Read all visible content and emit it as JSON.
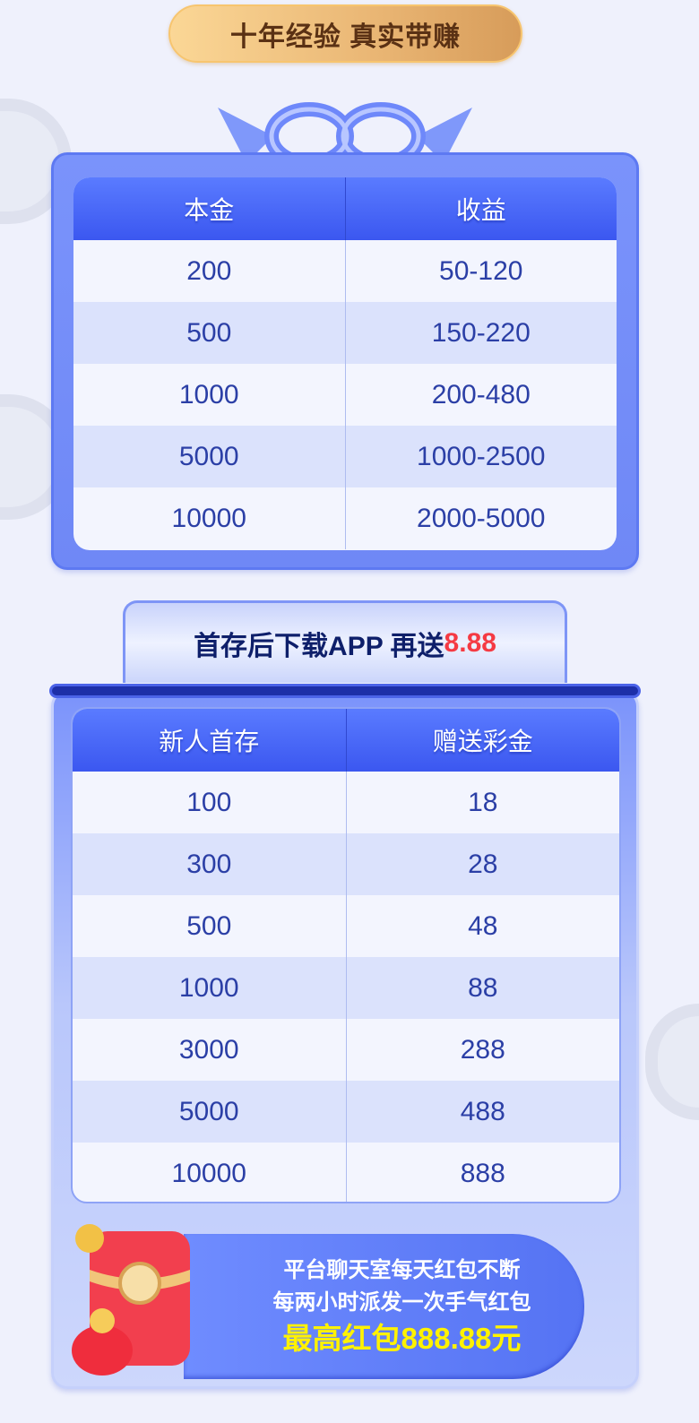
{
  "banner": {
    "title": "十年经验 真实带赚"
  },
  "table1": {
    "headers": [
      "本金",
      "收益"
    ],
    "rows": [
      [
        "200",
        "50-120"
      ],
      [
        "500",
        "150-220"
      ],
      [
        "1000",
        "200-480"
      ],
      [
        "5000",
        "1000-2500"
      ],
      [
        "10000",
        "2000-5000"
      ]
    ]
  },
  "promo_tab": {
    "text": "首存后下载APP 再送",
    "amount": "8.88"
  },
  "table2": {
    "headers": [
      "新人首存",
      "赠送彩金"
    ],
    "rows": [
      [
        "100",
        "18"
      ],
      [
        "300",
        "28"
      ],
      [
        "500",
        "48"
      ],
      [
        "1000",
        "88"
      ],
      [
        "3000",
        "288"
      ],
      [
        "5000",
        "488"
      ],
      [
        "10000",
        "888"
      ]
    ]
  },
  "red_packet": {
    "line1": "平台聊天室每天红包不断",
    "line2": "每两小时派发一次手气红包",
    "highlight": "最高红包888.88元"
  },
  "colors": {
    "accent_blue": "#3b57f0",
    "promo_red": "#f53a43",
    "highlight_yellow": "#fff200",
    "gold": "#e9b573"
  }
}
